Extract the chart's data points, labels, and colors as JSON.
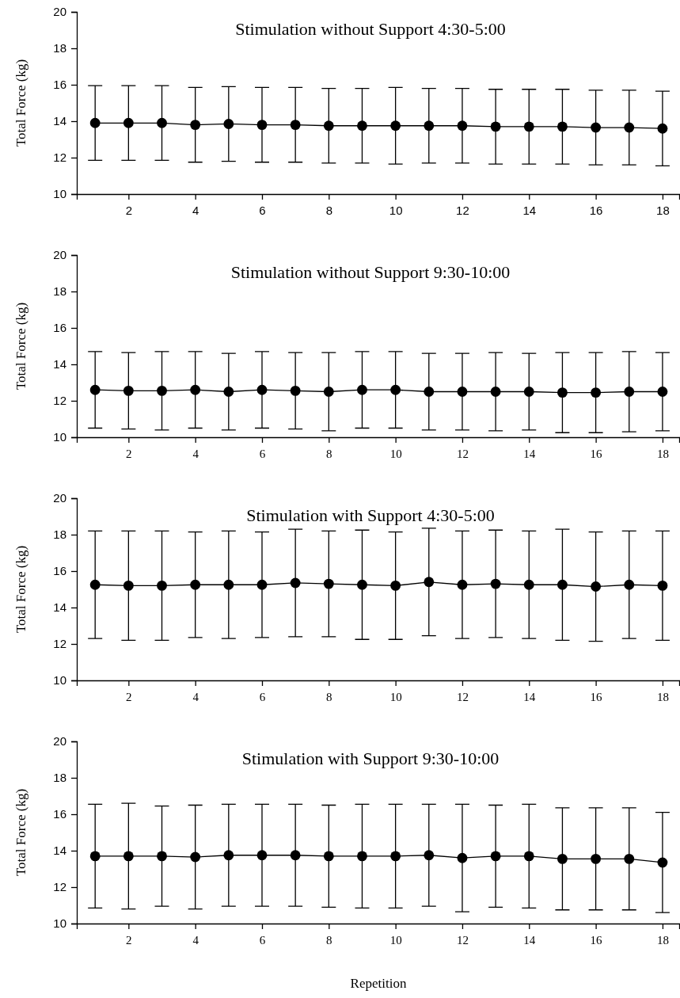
{
  "chart_data": [
    {
      "type": "line",
      "title": "Stimulation without Support 4:30-5:00",
      "ylabel": "Total Force (kg)",
      "x": [
        1,
        2,
        3,
        4,
        5,
        6,
        7,
        8,
        9,
        10,
        11,
        12,
        13,
        14,
        15,
        16,
        17,
        18
      ],
      "xlim": [
        0.45,
        18.5
      ],
      "xticks": [
        2,
        4,
        6,
        8,
        10,
        12,
        14,
        16,
        18
      ],
      "ylim": [
        10,
        20
      ],
      "yticks": [
        10,
        12,
        14,
        16,
        18,
        20
      ],
      "marker": "circle",
      "series": [
        {
          "color": "#000000",
          "values": [
            13.9,
            13.9,
            13.9,
            13.8,
            13.85,
            13.8,
            13.8,
            13.75,
            13.75,
            13.75,
            13.75,
            13.75,
            13.7,
            13.7,
            13.7,
            13.65,
            13.65,
            13.6
          ],
          "errors": [
            2.05,
            2.05,
            2.05,
            2.05,
            2.05,
            2.05,
            2.05,
            2.05,
            2.05,
            2.1,
            2.05,
            2.05,
            2.05,
            2.05,
            2.05,
            2.05,
            2.05,
            2.05
          ]
        }
      ]
    },
    {
      "type": "line",
      "title": "Stimulation without Support 9:30-10:00",
      "ylabel": "Total Force (kg)",
      "x": [
        1,
        2,
        3,
        4,
        5,
        6,
        7,
        8,
        9,
        10,
        11,
        12,
        13,
        14,
        15,
        16,
        17,
        18
      ],
      "xlim": [
        0.45,
        18.5
      ],
      "xticks": [
        2,
        4,
        6,
        8,
        10,
        12,
        14,
        16,
        18
      ],
      "ylim": [
        10,
        20
      ],
      "yticks": [
        10,
        12,
        14,
        16,
        18,
        20
      ],
      "marker": "circle",
      "series": [
        {
          "color": "#000000",
          "values": [
            12.6,
            12.55,
            12.55,
            12.6,
            12.5,
            12.6,
            12.55,
            12.5,
            12.6,
            12.6,
            12.5,
            12.5,
            12.5,
            12.5,
            12.45,
            12.45,
            12.5,
            12.5
          ],
          "errors": [
            2.1,
            2.1,
            2.15,
            2.1,
            2.1,
            2.1,
            2.1,
            2.15,
            2.1,
            2.1,
            2.1,
            2.1,
            2.15,
            2.1,
            2.2,
            2.2,
            2.2,
            2.15
          ]
        }
      ]
    },
    {
      "type": "line",
      "title": "Stimulation with Support 4:30-5:00",
      "ylabel": "Total Force (kg)",
      "x": [
        1,
        2,
        3,
        4,
        5,
        6,
        7,
        8,
        9,
        10,
        11,
        12,
        13,
        14,
        15,
        16,
        17,
        18
      ],
      "xlim": [
        0.45,
        18.5
      ],
      "xticks": [
        2,
        4,
        6,
        8,
        10,
        12,
        14,
        16,
        18
      ],
      "ylim": [
        10,
        20
      ],
      "yticks": [
        10,
        12,
        14,
        16,
        18,
        20
      ],
      "marker": "circle",
      "series": [
        {
          "color": "#000000",
          "values": [
            15.25,
            15.2,
            15.2,
            15.25,
            15.25,
            15.25,
            15.35,
            15.3,
            15.25,
            15.2,
            15.4,
            15.25,
            15.3,
            15.25,
            15.25,
            15.15,
            15.25,
            15.2
          ],
          "errors": [
            2.95,
            3.0,
            3.0,
            2.9,
            2.95,
            2.9,
            2.95,
            2.9,
            3.0,
            2.95,
            2.95,
            2.95,
            2.95,
            2.95,
            3.05,
            3.0,
            2.95,
            3.0
          ]
        }
      ]
    },
    {
      "type": "line",
      "title": "Stimulation with Support 9:30-10:00",
      "ylabel": "Total Force (kg)",
      "xlabel": "Repetition",
      "x": [
        1,
        2,
        3,
        4,
        5,
        6,
        7,
        8,
        9,
        10,
        11,
        12,
        13,
        14,
        15,
        16,
        17,
        18
      ],
      "xlim": [
        0.45,
        18.5
      ],
      "xticks": [
        2,
        4,
        6,
        8,
        10,
        12,
        14,
        16,
        18
      ],
      "ylim": [
        10,
        20
      ],
      "yticks": [
        10,
        12,
        14,
        16,
        18,
        20
      ],
      "marker": "circle",
      "series": [
        {
          "color": "#000000",
          "values": [
            13.7,
            13.7,
            13.7,
            13.65,
            13.75,
            13.75,
            13.75,
            13.7,
            13.7,
            13.7,
            13.75,
            13.6,
            13.7,
            13.7,
            13.55,
            13.55,
            13.55,
            13.35
          ],
          "errors": [
            2.85,
            2.9,
            2.75,
            2.85,
            2.8,
            2.8,
            2.8,
            2.8,
            2.85,
            2.85,
            2.8,
            2.95,
            2.8,
            2.85,
            2.8,
            2.8,
            2.8,
            2.75
          ]
        }
      ]
    }
  ]
}
